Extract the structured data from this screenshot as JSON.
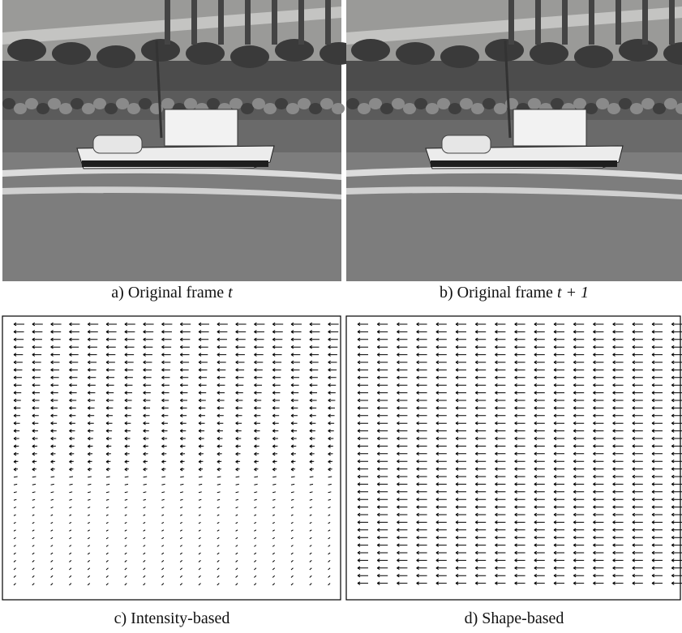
{
  "panels": [
    {
      "label": "a)",
      "text": "Original frame",
      "math": "t"
    },
    {
      "label": "b)",
      "text": "Original frame",
      "math": "t + 1"
    },
    {
      "label": "c)",
      "text": "Intensity-based"
    },
    {
      "label": "d)",
      "text": "Shape-based"
    }
  ]
}
